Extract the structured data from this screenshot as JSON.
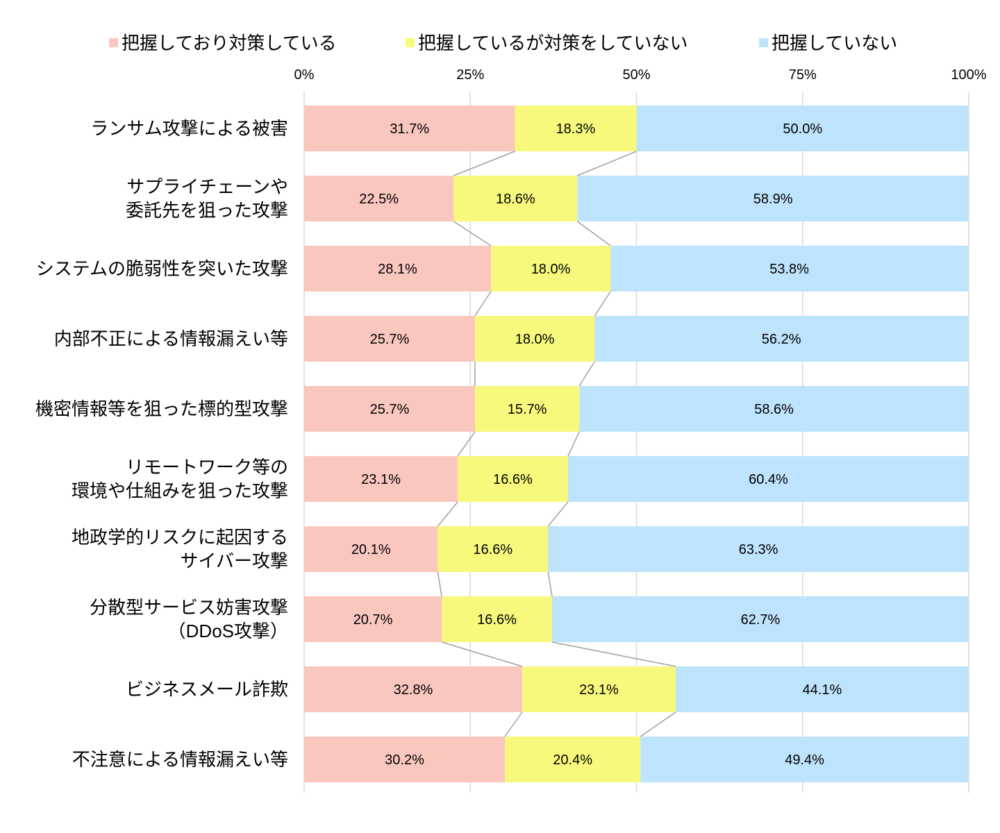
{
  "chart_data": {
    "type": "bar",
    "orientation": "horizontal",
    "stacked": "percent",
    "title": "",
    "xlabel": "",
    "ylabel": "",
    "xlim": [
      0,
      100
    ],
    "x_ticks": [
      "0%",
      "25%",
      "50%",
      "75%",
      "100%"
    ],
    "x_tick_values": [
      0,
      25,
      50,
      75,
      100
    ],
    "grid": true,
    "legend_position": "top",
    "categories": [
      [
        "ランサム攻撃による被害"
      ],
      [
        "サプライチェーンや",
        "委託先を狙った攻撃"
      ],
      [
        "システムの脆弱性を突いた攻撃"
      ],
      [
        "内部不正による情報漏えい等"
      ],
      [
        "機密情報等を狙った標的型攻撃"
      ],
      [
        "リモートワーク等の",
        "環境や仕組みを狙った攻撃"
      ],
      [
        "地政学的リスクに起因する",
        "サイバー攻撃"
      ],
      [
        "分散型サービス妨害攻撃",
        "（DDoS攻撃）"
      ],
      [
        "ビジネスメール詐欺"
      ],
      [
        "不注意による情報漏えい等"
      ]
    ],
    "series": [
      {
        "name": "把握しており対策している",
        "color": "#F9C7BE",
        "values": [
          31.7,
          22.5,
          28.1,
          25.7,
          25.7,
          23.1,
          20.1,
          20.7,
          32.8,
          30.2
        ]
      },
      {
        "name": "把握しているが対策をしていない",
        "color": "#F7F97C",
        "values": [
          18.3,
          18.6,
          18.0,
          18.0,
          15.7,
          16.6,
          16.6,
          16.6,
          23.1,
          20.4
        ]
      },
      {
        "name": "把握していない",
        "color": "#BEE3FC",
        "values": [
          50.0,
          58.9,
          53.8,
          56.2,
          58.6,
          60.4,
          63.3,
          62.7,
          44.1,
          49.4
        ]
      }
    ],
    "series_lines": true,
    "value_suffix": "%"
  }
}
